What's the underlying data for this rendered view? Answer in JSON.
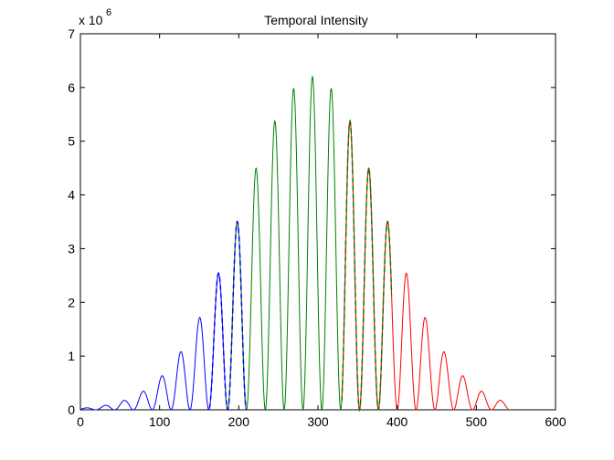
{
  "chart_data": {
    "type": "line",
    "title": "Temporal Intensity",
    "xlabel": "",
    "ylabel": "",
    "y_multiplier_label": "x 10",
    "y_multiplier_exponent": "6",
    "xlim": [
      0,
      600
    ],
    "ylim": [
      0,
      7
    ],
    "xticks": [
      0,
      100,
      200,
      300,
      400,
      500,
      600
    ],
    "yticks": [
      0,
      1,
      2,
      3,
      4,
      5,
      6,
      7
    ],
    "grid": false,
    "legend": "none",
    "envelope": {
      "center": 293,
      "sigma": 89,
      "peak": 6.2,
      "fringe_period": 23.8
    },
    "series": [
      {
        "color": "#0000ff",
        "style": "solid",
        "x_range": [
          0,
          210
        ]
      },
      {
        "color": "#008000",
        "style": "solid",
        "x_range": [
          183,
          393
        ]
      },
      {
        "color": "#ff0000",
        "style": "solid",
        "x_range": [
          330,
          540
        ]
      },
      {
        "color": "#0000ff",
        "style": "dashed",
        "x_range": [
          163,
          210
        ]
      },
      {
        "color": "#008000",
        "style": "dashed",
        "x_range": [
          330,
          393
        ]
      }
    ]
  }
}
